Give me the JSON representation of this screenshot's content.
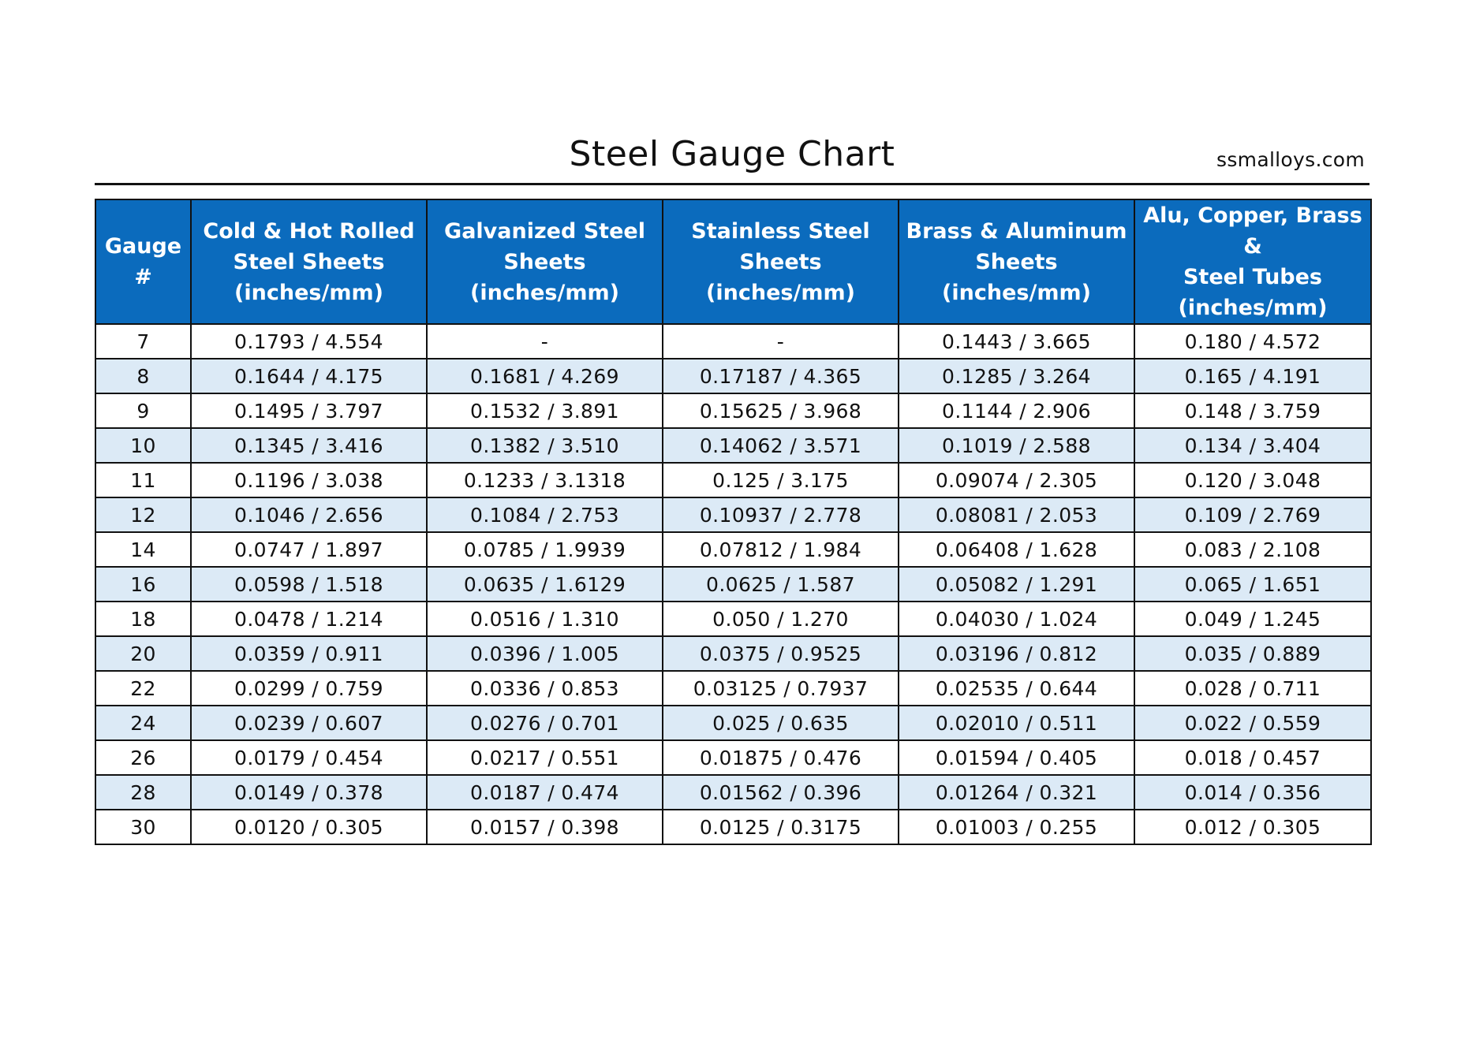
{
  "title": "Steel Gauge Chart",
  "site": "ssmalloys.com",
  "colors": {
    "header_bg": "#0b6bbd",
    "header_text": "#ffffff",
    "stripe_row": "#dceaf6"
  },
  "chart_data": {
    "type": "table",
    "title": "Steel Gauge Chart",
    "columns": [
      [
        "Gauge",
        "#"
      ],
      [
        "Cold & Hot Rolled",
        "Steel Sheets",
        "(inches/mm)"
      ],
      [
        "Galvanized Steel",
        "Sheets (inches/mm)"
      ],
      [
        "Stainless Steel Sheets",
        "(inches/mm)"
      ],
      [
        "Brass & Aluminum",
        "Sheets (inches/mm)"
      ],
      [
        "Alu, Copper, Brass &",
        "Steel Tubes",
        "(inches/mm)"
      ]
    ],
    "rows": [
      [
        "7",
        "0.1793 / 4.554",
        "-",
        "-",
        "0.1443 / 3.665",
        "0.180 / 4.572"
      ],
      [
        "8",
        "0.1644 / 4.175",
        "0.1681 / 4.269",
        "0.17187 / 4.365",
        "0.1285 / 3.264",
        "0.165 / 4.191"
      ],
      [
        "9",
        "0.1495 / 3.797",
        "0.1532 / 3.891",
        "0.15625 / 3.968",
        "0.1144 / 2.906",
        "0.148 / 3.759"
      ],
      [
        "10",
        "0.1345 / 3.416",
        "0.1382 / 3.510",
        "0.14062 / 3.571",
        "0.1019 / 2.588",
        "0.134 / 3.404"
      ],
      [
        "11",
        "0.1196 / 3.038",
        "0.1233 / 3.1318",
        "0.125 / 3.175",
        "0.09074 / 2.305",
        "0.120 / 3.048"
      ],
      [
        "12",
        "0.1046 / 2.656",
        "0.1084 / 2.753",
        "0.10937 / 2.778",
        "0.08081 / 2.053",
        "0.109 / 2.769"
      ],
      [
        "14",
        "0.0747 / 1.897",
        "0.0785 / 1.9939",
        "0.07812 / 1.984",
        "0.06408 / 1.628",
        "0.083 / 2.108"
      ],
      [
        "16",
        "0.0598 / 1.518",
        "0.0635 / 1.6129",
        "0.0625 / 1.587",
        "0.05082 / 1.291",
        "0.065 / 1.651"
      ],
      [
        "18",
        "0.0478 / 1.214",
        "0.0516 / 1.310",
        "0.050 / 1.270",
        "0.04030 / 1.024",
        "0.049 / 1.245"
      ],
      [
        "20",
        "0.0359 / 0.911",
        "0.0396 / 1.005",
        "0.0375 / 0.9525",
        "0.03196 / 0.812",
        "0.035 / 0.889"
      ],
      [
        "22",
        "0.0299 / 0.759",
        "0.0336 / 0.853",
        "0.03125 / 0.7937",
        "0.02535 / 0.644",
        "0.028 / 0.711"
      ],
      [
        "24",
        "0.0239 / 0.607",
        "0.0276 / 0.701",
        "0.025 / 0.635",
        "0.02010 / 0.511",
        "0.022 / 0.559"
      ],
      [
        "26",
        "0.0179 / 0.454",
        "0.0217 / 0.551",
        "0.01875 / 0.476",
        "0.01594 / 0.405",
        "0.018 / 0.457"
      ],
      [
        "28",
        "0.0149 / 0.378",
        "0.0187 / 0.474",
        "0.01562 / 0.396",
        "0.01264 / 0.321",
        "0.014 / 0.356"
      ],
      [
        "30",
        "0.0120 / 0.305",
        "0.0157 / 0.398",
        "0.0125 / 0.3175",
        "0.01003 / 0.255",
        "0.012 / 0.305"
      ]
    ]
  }
}
